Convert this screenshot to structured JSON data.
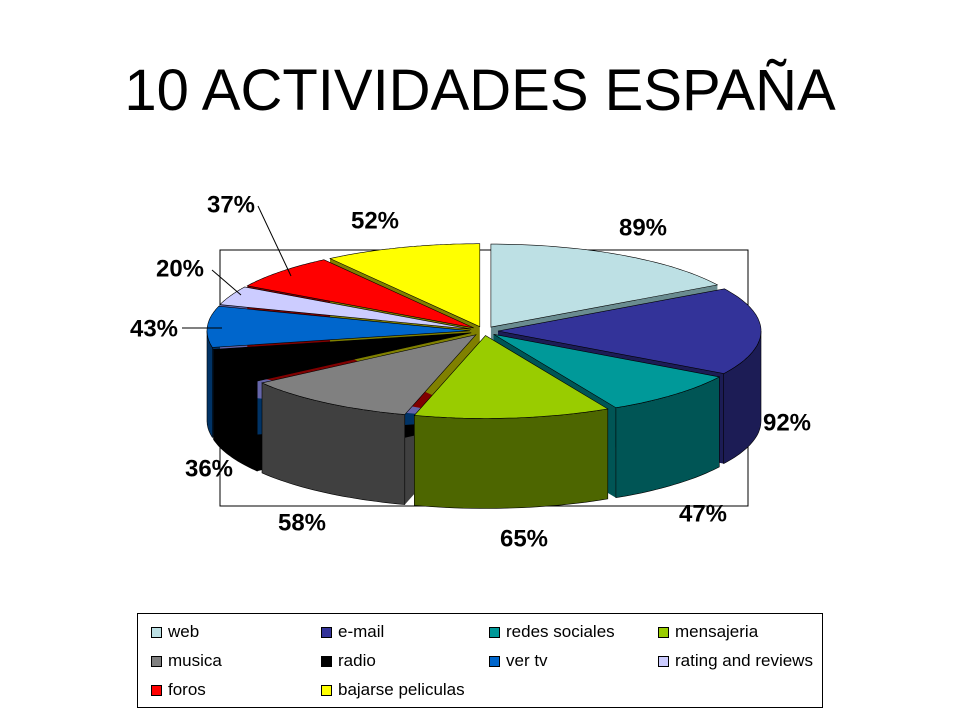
{
  "slide": {
    "title": "10 ACTIVIDADES ESPAÑA"
  },
  "chart_data": {
    "type": "pie",
    "style": "3d-exploded-perspective",
    "categories": [
      "web",
      "e-mail",
      "redes sociales",
      "mensajeria",
      "musica",
      "radio",
      "ver tv",
      "rating and reviews",
      "foros",
      "bajarse peliculas"
    ],
    "values": [
      89,
      92,
      47,
      65,
      58,
      36,
      43,
      20,
      37,
      52
    ],
    "labels": [
      "89%",
      "92%",
      "47%",
      "65%",
      "58%",
      "36%",
      "43%",
      "20%",
      "37%",
      "52%"
    ],
    "colors": [
      "#bde0e4",
      "#333399",
      "#009999",
      "#99cc00",
      "#808080",
      "#000000",
      "#0066cc",
      "#ccccff",
      "#ff0000",
      "#ffff00"
    ],
    "side_colors": [
      "#6a8c90",
      "#1c1c55",
      "#005555",
      "#4d6600",
      "#404040",
      "#000000",
      "#003366",
      "#6666aa",
      "#800000",
      "#808000"
    ],
    "legend_position": "bottom",
    "grid": false
  }
}
